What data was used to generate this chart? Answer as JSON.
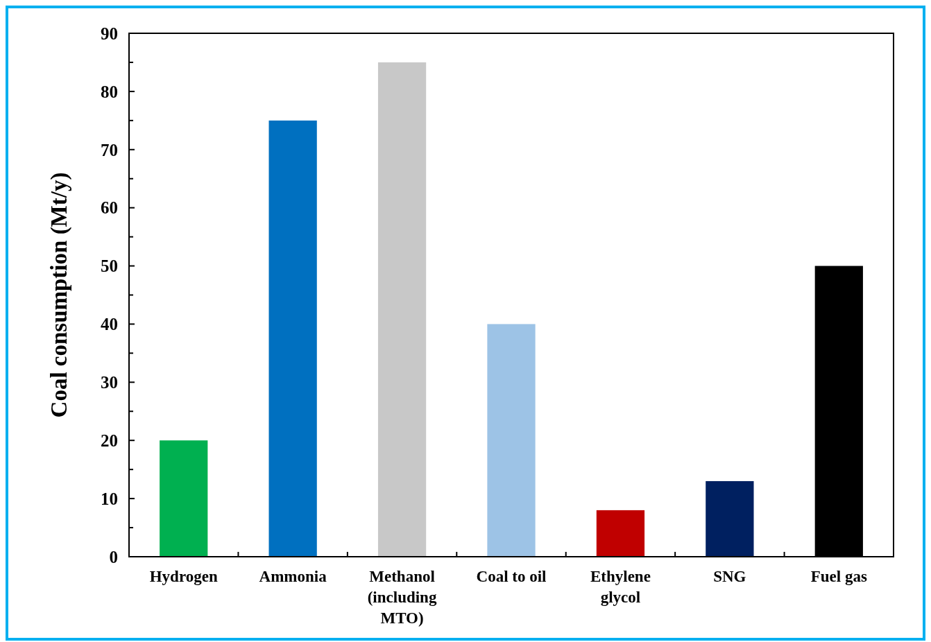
{
  "chart_data": {
    "type": "bar",
    "ylabel": "Coal consumption (Mt/y)",
    "categories": [
      "Hydrogen",
      "Ammonia",
      "Methanol (including MTO)",
      "Coal to oil",
      "Ethylene glycol",
      "SNG",
      "Fuel gas"
    ],
    "values": [
      20,
      75,
      85,
      40,
      8,
      13,
      50
    ],
    "colors": [
      "#00b050",
      "#0070c0",
      "#c8c8c8",
      "#9dc3e6",
      "#c00000",
      "#002060",
      "#000000"
    ],
    "ylim": [
      0,
      90
    ],
    "yticks": [
      0,
      {
        "value": 5,
        "label": null
      },
      10,
      {
        "value": 15,
        "label": null
      },
      20,
      {
        "value": 25,
        "label": null
      },
      30,
      {
        "value": 35,
        "label": null
      },
      40,
      {
        "value": 45,
        "label": null
      },
      50,
      {
        "value": 55,
        "label": null
      },
      60,
      {
        "value": 65,
        "label": null
      },
      70,
      {
        "value": 75,
        "label": null
      },
      80,
      {
        "value": 85,
        "label": null
      },
      90
    ]
  }
}
